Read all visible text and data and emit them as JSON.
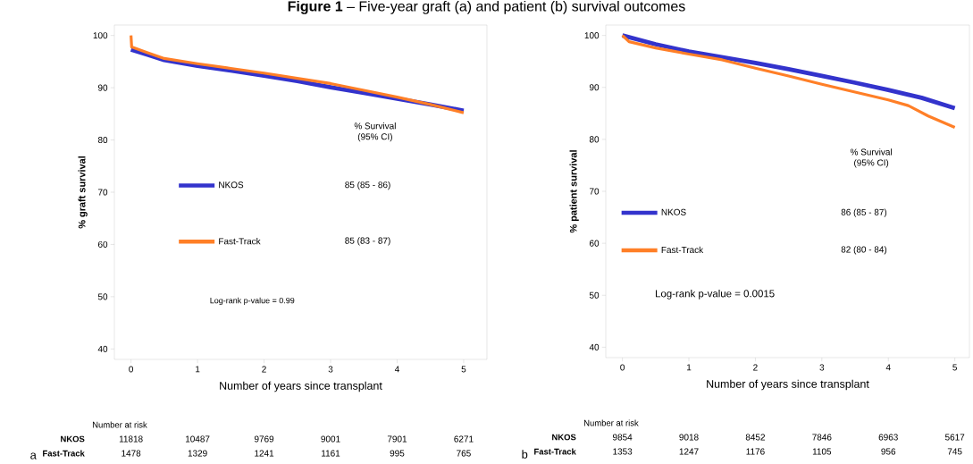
{
  "chart_data": [
    {
      "type": "line",
      "title": "**Figure 1** – Five-year graft (a) and patient (b) survival outcomes",
      "xlabel": "Number of years since transplant",
      "ylabel": "% graft survival",
      "xlim": [
        -0.25,
        5.35
      ],
      "ylim": [
        38,
        102
      ],
      "xticks": [
        0,
        1,
        2,
        3,
        4,
        5
      ],
      "yticks": [
        40,
        50,
        60,
        70,
        80,
        90,
        100
      ],
      "legend": "left",
      "series": [
        {
          "name": "NKOS",
          "color": "#3333cc",
          "x": [
            0,
            0.25,
            0.5,
            1,
            1.5,
            2,
            2.5,
            3,
            3.5,
            4,
            4.5,
            5
          ],
          "values": [
            97.3,
            96.3,
            95.3,
            94.2,
            93.3,
            92.3,
            91.3,
            90.1,
            89,
            87.9,
            86.8,
            85.6
          ]
        },
        {
          "name": "Fast-Track",
          "color": "#ff7f27",
          "x": [
            0,
            0.01,
            0.25,
            0.5,
            1,
            1.5,
            2,
            2.5,
            3,
            3.5,
            4,
            4.5,
            5
          ],
          "values": [
            100,
            97.8,
            96.7,
            95.6,
            94.6,
            93.7,
            92.8,
            91.8,
            90.8,
            89.5,
            88.2,
            86.8,
            85.2
          ]
        }
      ],
      "annotations": [
        "% Survival",
        "(95% CI)",
        "85 (85 - 86)",
        "85 (83 - 87)",
        "Log-rank p-value = 0.99",
        "Number at risk",
        "NKOS",
        "Fast-Track",
        "11818",
        "10487",
        "9769",
        "9001",
        "7901",
        "6271",
        "1478",
        "1329",
        "1241",
        "1161",
        "995",
        "765",
        "a"
      ]
    },
    {
      "type": "line",
      "xlabel": "Number of years since transplant",
      "ylabel": "% patient survival",
      "xlim": [
        -0.25,
        5.22
      ],
      "ylim": [
        38,
        102
      ],
      "xticks": [
        0,
        1,
        2,
        3,
        4,
        5
      ],
      "yticks": [
        40,
        50,
        60,
        70,
        80,
        90,
        100
      ],
      "legend": "left",
      "series": [
        {
          "name": "NKOS",
          "color": "#3333cc",
          "x": [
            0,
            0.5,
            1,
            1.5,
            2,
            2.5,
            3,
            3.5,
            4,
            4.5,
            5
          ],
          "values": [
            100,
            98.3,
            96.9,
            95.8,
            94.7,
            93.5,
            92.2,
            90.9,
            89.5,
            88,
            86
          ]
        },
        {
          "name": "Fast-Track",
          "color": "#ff7f27",
          "x": [
            0,
            0.1,
            0.5,
            1,
            1.5,
            2,
            2.5,
            3,
            3.5,
            4,
            4.3,
            4.6,
            5
          ],
          "values": [
            100,
            98.8,
            97.6,
            96.4,
            95.3,
            93.7,
            92.2,
            90.6,
            89.1,
            87.6,
            86.5,
            84.5,
            82.3
          ]
        }
      ],
      "annotations": [
        "% Survival",
        "(95% CI)",
        "86 (85 - 87)",
        "82 (80 - 84)",
        "Log-rank p-value = 0.0015",
        "Number at risk",
        "NKOS",
        "Fast-Track",
        "9854",
        "9018",
        "8452",
        "7846",
        "6963",
        "5617",
        "1353",
        "1247",
        "1176",
        "1105",
        "956",
        "745",
        "b"
      ]
    }
  ]
}
